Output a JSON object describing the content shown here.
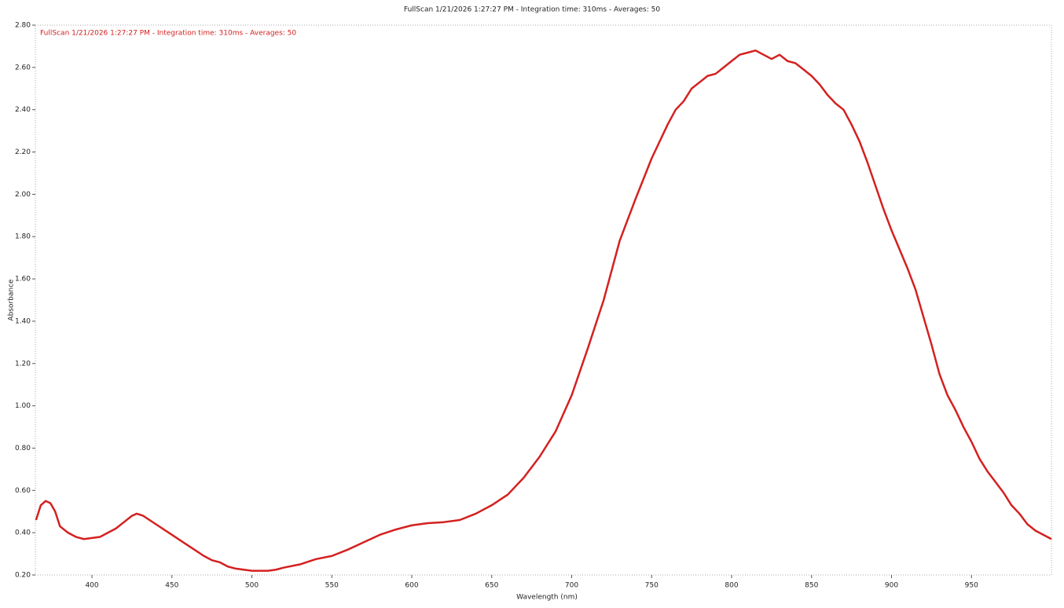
{
  "chart_data": {
    "type": "line",
    "title": "FullScan 1/21/2026 1:27:27 PM - Integration time: 310ms - Averages: 50",
    "x_label": "Wavelength (nm)",
    "y_label": "Absorbance",
    "xlim": [
      364.6,
      1000
    ],
    "ylim": [
      0.2,
      2.8
    ],
    "xticks": [
      400,
      450,
      500,
      550,
      600,
      650,
      700,
      750,
      800,
      850,
      900,
      950
    ],
    "yticks": [
      {
        "value": 0.2,
        "label": "0.20"
      },
      {
        "value": 0.4,
        "label": "0.40"
      },
      {
        "value": 0.6,
        "label": "0.60"
      },
      {
        "value": 0.8,
        "label": "0.80"
      },
      {
        "value": 1.0,
        "label": "1.00"
      },
      {
        "value": 1.2,
        "label": "1.20"
      },
      {
        "value": 1.4,
        "label": "1.40"
      },
      {
        "value": 1.6,
        "label": "1.60"
      },
      {
        "value": 1.8,
        "label": "1.80"
      },
      {
        "value": 2.0,
        "label": "2.00"
      },
      {
        "value": 2.2,
        "label": "2.20"
      },
      {
        "value": 2.4,
        "label": "2.40"
      },
      {
        "value": 2.6,
        "label": "2.60"
      },
      {
        "value": 2.8,
        "label": "2.80"
      }
    ],
    "x": [
      365,
      368,
      371,
      374,
      377,
      380,
      385,
      390,
      395,
      400,
      405,
      410,
      415,
      420,
      425,
      428,
      432,
      440,
      450,
      460,
      470,
      475,
      480,
      485,
      490,
      495,
      500,
      510,
      515,
      520,
      530,
      540,
      550,
      560,
      570,
      580,
      590,
      600,
      610,
      620,
      630,
      640,
      650,
      660,
      670,
      680,
      690,
      700,
      710,
      720,
      730,
      740,
      750,
      760,
      765,
      770,
      775,
      780,
      785,
      790,
      795,
      800,
      805,
      810,
      815,
      820,
      825,
      830,
      835,
      840,
      845,
      850,
      855,
      860,
      865,
      870,
      875,
      880,
      885,
      890,
      895,
      900,
      905,
      910,
      915,
      920,
      925,
      930,
      935,
      940,
      945,
      950,
      955,
      960,
      965,
      970,
      975,
      980,
      985,
      990,
      995,
      1000
    ],
    "series": [
      {
        "name": "FullScan 1/21/2026 1:27:27 PM - Integration time: 310ms - Averages: 50",
        "color": "#d42020",
        "values": [
          0.46,
          0.53,
          0.55,
          0.54,
          0.5,
          0.43,
          0.4,
          0.38,
          0.37,
          0.375,
          0.38,
          0.4,
          0.42,
          0.45,
          0.48,
          0.49,
          0.48,
          0.44,
          0.39,
          0.34,
          0.29,
          0.27,
          0.26,
          0.24,
          0.23,
          0.225,
          0.22,
          0.22,
          0.225,
          0.235,
          0.25,
          0.275,
          0.29,
          0.32,
          0.355,
          0.39,
          0.415,
          0.435,
          0.445,
          0.45,
          0.46,
          0.49,
          0.53,
          0.58,
          0.66,
          0.76,
          0.88,
          1.05,
          1.27,
          1.5,
          1.78,
          1.98,
          2.17,
          2.33,
          2.4,
          2.44,
          2.5,
          2.53,
          2.56,
          2.57,
          2.6,
          2.63,
          2.66,
          2.67,
          2.68,
          2.66,
          2.64,
          2.66,
          2.63,
          2.62,
          2.59,
          2.56,
          2.52,
          2.47,
          2.43,
          2.4,
          2.33,
          2.25,
          2.15,
          2.04,
          1.93,
          1.83,
          1.74,
          1.65,
          1.55,
          1.42,
          1.29,
          1.15,
          1.05,
          0.98,
          0.9,
          0.83,
          0.75,
          0.69,
          0.64,
          0.59,
          0.53,
          0.49,
          0.44,
          0.41,
          0.39,
          0.37
        ]
      }
    ]
  }
}
